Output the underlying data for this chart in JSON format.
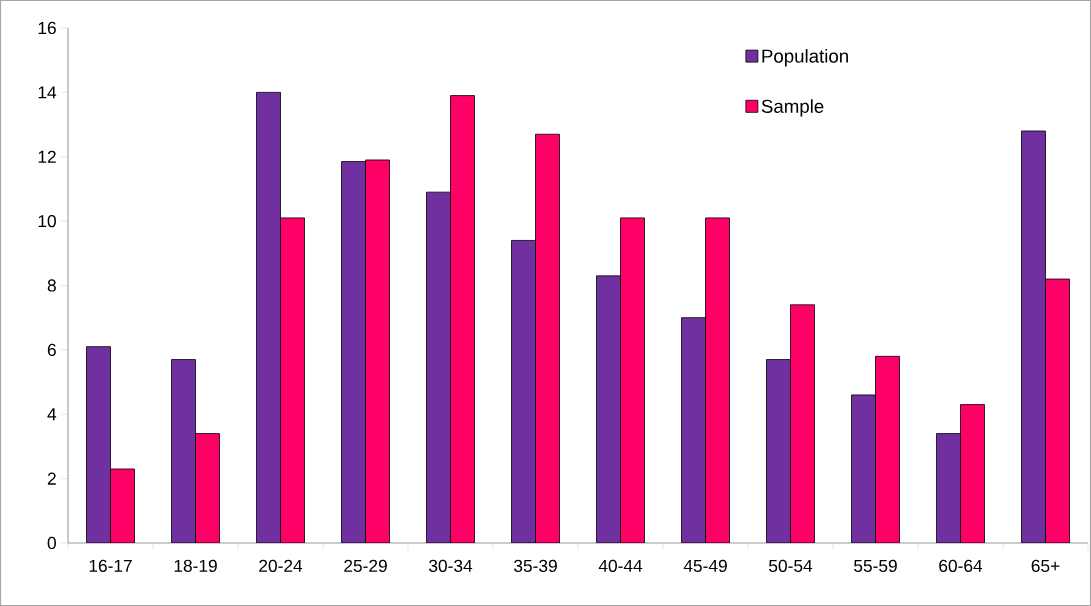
{
  "chart_data": {
    "type": "bar",
    "categories": [
      "16-17",
      "18-19",
      "20-24",
      "25-29",
      "30-34",
      "35-39",
      "40-44",
      "45-49",
      "50-54",
      "55-59",
      "60-64",
      "65+"
    ],
    "series": [
      {
        "name": "Population",
        "color": "#7030a0",
        "values": [
          6.1,
          5.7,
          14.0,
          11.85,
          10.9,
          9.4,
          8.3,
          7.0,
          5.7,
          4.6,
          3.4,
          12.8
        ]
      },
      {
        "name": "Sample",
        "color": "#ff0066",
        "values": [
          2.3,
          3.4,
          10.1,
          11.9,
          13.9,
          12.7,
          10.1,
          10.1,
          7.4,
          5.8,
          4.3,
          8.2
        ]
      }
    ],
    "ylim": [
      0,
      16
    ],
    "yticks": [
      0,
      2,
      4,
      6,
      8,
      10,
      12,
      14,
      16
    ],
    "grid": false,
    "legend": "top right"
  }
}
